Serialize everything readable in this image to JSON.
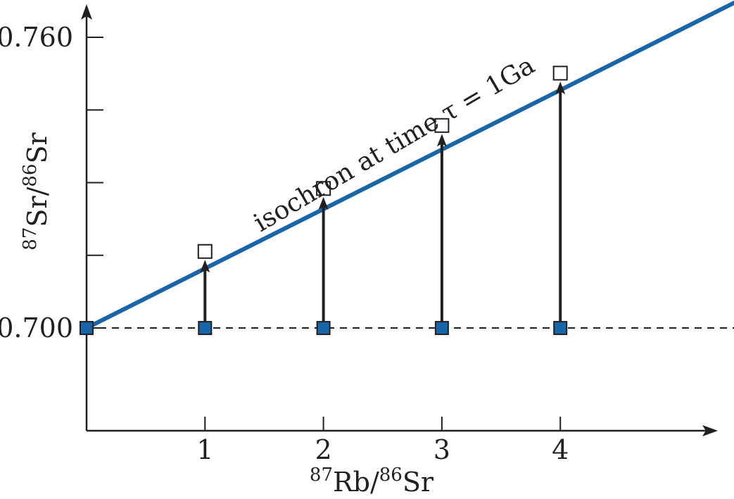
{
  "chart_data": {
    "type": "scatter",
    "title": "",
    "xlabel": {
      "pre": "87",
      "base1": "Rb/",
      "sup2": "86",
      "base2": "Sr"
    },
    "ylabel": {
      "pre": "87",
      "base1": "Sr/",
      "sup2": "86",
      "base2": "Sr"
    },
    "xlim": [
      0,
      5.3
    ],
    "ylim": [
      0.6788,
      0.7645
    ],
    "x_ticks": [
      1,
      2,
      3,
      4
    ],
    "x_tick_labels": [
      "1",
      "2",
      "3",
      "4"
    ],
    "y_ticks": [
      0.7,
      0.715,
      0.73,
      0.745,
      0.76
    ],
    "y_tick_labels": [
      "0.700",
      "",
      "",
      "",
      "0.760"
    ],
    "series": [
      {
        "marker": "filled-square",
        "color": "#1866aa",
        "x": [
          0,
          1,
          2,
          3,
          4
        ],
        "y": [
          0.7,
          0.7,
          0.7,
          0.7,
          0.7
        ]
      },
      {
        "marker": "open-square",
        "color": "#ffffff",
        "x": [
          1,
          2,
          3,
          4
        ],
        "y": [
          0.7158,
          0.7288,
          0.7418,
          0.7526
        ]
      }
    ],
    "isochron": {
      "x": [
        0,
        5.58
      ],
      "y": [
        0.7,
        0.7685
      ],
      "color": "#1866aa"
    },
    "baseline": {
      "y": 0.7,
      "x_end": 5.85,
      "style": "dashed"
    },
    "arrows": [
      {
        "x": 1,
        "from": 0.7,
        "to": 0.7158
      },
      {
        "x": 2,
        "from": 0.7,
        "to": 0.7288
      },
      {
        "x": 3,
        "from": 0.7,
        "to": 0.7418
      },
      {
        "x": 4,
        "from": 0.7,
        "to": 0.7526
      }
    ],
    "annotation": "isochron at time τ = 1Ga",
    "grid": false,
    "legend": "none"
  }
}
